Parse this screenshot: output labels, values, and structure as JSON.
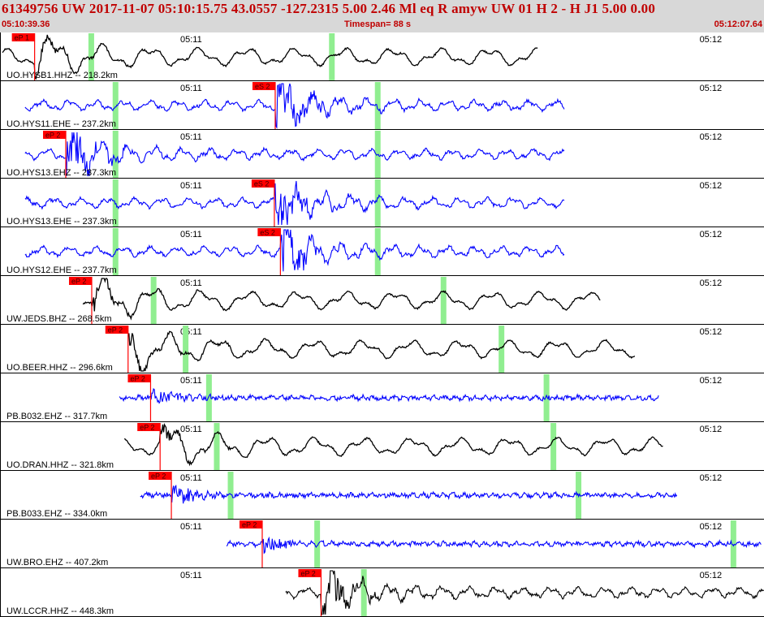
{
  "header": {
    "title": "61349756 UW 2017-11-07 05:10:15.75   43.0557 -127.2315   5.00  2.46 Ml  eq  R amyw     UW 01  H   2  -  H J1    5.00  0.00",
    "start_time": "05:10:39.36",
    "timespan": "Timespan=  88 s",
    "end_time": "05:12:07.64"
  },
  "colors": {
    "pick": "#ff0000",
    "marker": "#90ee90",
    "trace_black": "#000000",
    "trace_blue": "#0000ff",
    "header_bg": "#d8d8d8",
    "header_text": "#c00000"
  },
  "chart_data": {
    "type": "line",
    "title": "61349756 UW 2017-11-07 05:10:15.75",
    "x_unit": "seconds since 05:10:39.36",
    "xlim": [
      0,
      88.28
    ],
    "tick_labels": [
      {
        "t": 20.64,
        "label": "05:11"
      },
      {
        "t": 80.64,
        "label": "05:12"
      }
    ],
    "traces": [
      {
        "label": "UO.HYSB1.HHZ -- 218.2km",
        "color": "black",
        "start": 0.3,
        "end": 62.2,
        "style": "long",
        "pick": {
          "label": "eP 1",
          "t": 4.0
        },
        "markers": [
          10.5,
          38.3
        ]
      },
      {
        "label": "UO.HYS11.EHE -- 237.2km",
        "color": "blue",
        "start": 2.9,
        "end": 65.2,
        "style": "mixed",
        "pick": {
          "label": "eS 2",
          "t": 31.8
        },
        "markers": [
          13.3,
          43.6
        ]
      },
      {
        "label": "UO.HYS13.EHZ -- 237.3km",
        "color": "blue",
        "start": 2.9,
        "end": 65.2,
        "style": "mixed",
        "pick": {
          "label": "eP 2",
          "t": 7.6
        },
        "markers": [
          13.3,
          43.6
        ]
      },
      {
        "label": "UO.HYS13.EHE -- 237.3km",
        "color": "blue",
        "start": 2.9,
        "end": 65.2,
        "style": "mixed",
        "pick": {
          "label": "eS 2",
          "t": 31.7
        },
        "markers": [
          13.3,
          43.6
        ]
      },
      {
        "label": "UO.HYS12.EHE -- 237.7km",
        "color": "blue",
        "start": 2.9,
        "end": 65.2,
        "style": "mixed",
        "pick": {
          "label": "eS 2",
          "t": 32.4
        },
        "markers": [
          13.3,
          43.6
        ]
      },
      {
        "label": "UW.JEDS.BHZ -- 268.5km",
        "color": "black",
        "start": 9.6,
        "end": 69.4,
        "style": "long",
        "pick": {
          "label": "eP 2",
          "t": 10.6
        },
        "markers": [
          17.7,
          51.2
        ]
      },
      {
        "label": "UO.BEER.HHZ -- 296.6km",
        "color": "black",
        "start": 14.8,
        "end": 73.4,
        "style": "long",
        "pick": {
          "label": "eP 2",
          "t": 14.8
        },
        "markers": [
          21.4,
          57.9
        ]
      },
      {
        "label": "PB.B032.EHZ -- 317.7km",
        "color": "blue",
        "start": 13.8,
        "end": 76.1,
        "style": "noise",
        "pick": {
          "label": "eP 2",
          "t": 17.4
        },
        "markers": [
          24.1,
          63.1
        ]
      },
      {
        "label": "UO.DRAN.HHZ -- 321.8km",
        "color": "black",
        "start": 14.4,
        "end": 76.6,
        "style": "long",
        "pick": {
          "label": "eP 2",
          "t": 18.5
        },
        "markers": [
          25.0,
          63.9
        ]
      },
      {
        "label": "PB.B033.EHZ -- 334.0km",
        "color": "blue",
        "start": 16.2,
        "end": 78.3,
        "style": "noise",
        "pick": {
          "label": "eP 2",
          "t": 19.8
        },
        "markers": [
          26.6,
          66.8
        ]
      },
      {
        "label": "UW.BRO.EHZ -- 407.2km",
        "color": "blue",
        "start": 26.2,
        "end": 88.0,
        "style": "noise",
        "pick": {
          "label": "eP 2",
          "t": 30.3
        },
        "markers": [
          36.6,
          84.7
        ]
      },
      {
        "label": "UW.LCCR.HHZ -- 448.3km",
        "color": "black",
        "start": 33.0,
        "end": 88.28,
        "style": "mixed",
        "pick": {
          "label": "eP 2",
          "t": 37.1
        },
        "markers": [
          42.0
        ]
      }
    ]
  }
}
